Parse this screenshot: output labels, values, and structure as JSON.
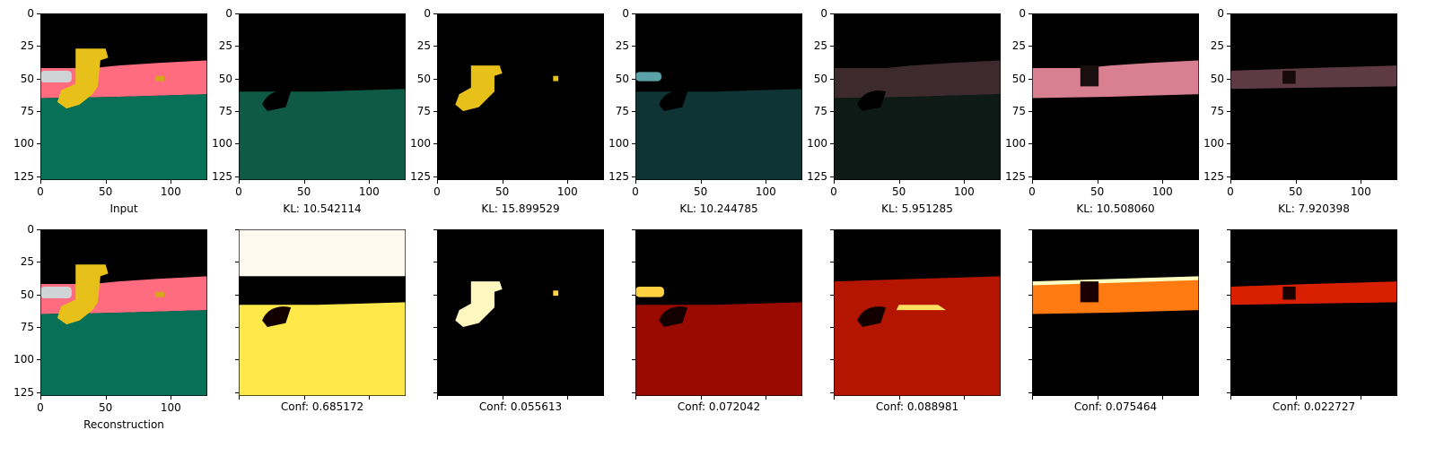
{
  "rows": [
    {
      "panels": [
        {
          "caption": "Input",
          "kind": "scene"
        },
        {
          "caption": "KL: 10.542114",
          "kind": "green_mask"
        },
        {
          "caption": "KL: 15.899529",
          "kind": "yellow_mask"
        },
        {
          "caption": "KL: 10.244785",
          "kind": "teal_mask"
        },
        {
          "caption": "KL: 5.951285",
          "kind": "faint_mask"
        },
        {
          "caption": "KL: 10.508060",
          "kind": "pink_mask"
        },
        {
          "caption": "KL: 7.920398",
          "kind": "pink_strip"
        }
      ]
    },
    {
      "panels": [
        {
          "caption": "Reconstruction",
          "kind": "scene"
        },
        {
          "caption": "Conf: 0.685172",
          "kind": "heat_green"
        },
        {
          "caption": "Conf: 0.055613",
          "kind": "heat_yellow"
        },
        {
          "caption": "Conf: 0.072042",
          "kind": "heat_teal"
        },
        {
          "caption": "Conf: 0.088981",
          "kind": "heat_faint"
        },
        {
          "caption": "Conf: 0.075464",
          "kind": "heat_pink"
        },
        {
          "caption": "Conf: 0.022727",
          "kind": "heat_strip"
        }
      ]
    }
  ],
  "axis": {
    "y_ticks": [
      "0",
      "25",
      "50",
      "75",
      "100",
      "125"
    ],
    "x_ticks": [
      "0",
      "50",
      "100"
    ]
  },
  "colors": {
    "sky": "#000000",
    "wall": "#ff6b7f",
    "floor": "#087056",
    "object": "#e7c11a",
    "heat_low": "#2a0000",
    "heat_mid": "#d41a00",
    "heat_high": "#fff7c0"
  }
}
